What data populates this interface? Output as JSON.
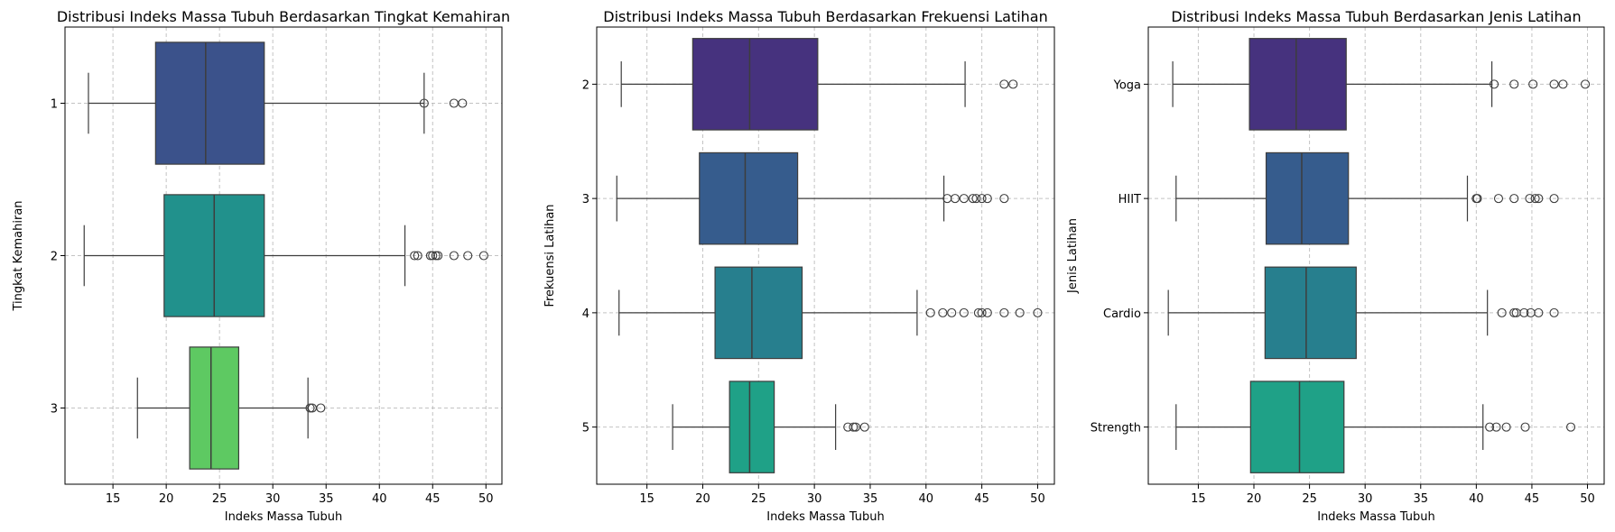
{
  "chart_data": [
    {
      "type": "box",
      "title": "Distribusi Indeks Massa Tubuh Berdasarkan Tingkat Kemahiran",
      "xlabel": "Indeks Massa Tubuh",
      "ylabel": "Tingkat Kemahiran",
      "xlim": [
        10.5,
        51.5
      ],
      "xticks": [
        15,
        20,
        25,
        30,
        35,
        40,
        45,
        50
      ],
      "categories": [
        "1",
        "2",
        "3"
      ],
      "grid": true,
      "palette": [
        "#3b528b",
        "#21918c",
        "#5ec962"
      ],
      "boxes": [
        {
          "whislo": 12.7,
          "q1": 19.0,
          "med": 23.7,
          "q3": 29.2,
          "whishi": 44.2,
          "fliers": [
            44.2,
            47.0,
            47.8
          ]
        },
        {
          "whislo": 12.3,
          "q1": 19.8,
          "med": 24.5,
          "q3": 29.2,
          "whishi": 42.4,
          "fliers": [
            43.3,
            43.6,
            44.8,
            45.0,
            45.3,
            45.5,
            47.0,
            48.3,
            49.8
          ]
        },
        {
          "whislo": 17.3,
          "q1": 22.2,
          "med": 24.2,
          "q3": 26.8,
          "whishi": 33.3,
          "fliers": [
            33.5,
            33.7,
            34.5
          ]
        }
      ]
    },
    {
      "type": "box",
      "title": "Distribusi Indeks Massa Tubuh Berdasarkan Frekuensi Latihan",
      "xlabel": "Indeks Massa Tubuh",
      "ylabel": "Frekuensi Latihan",
      "xlim": [
        10.5,
        51.5
      ],
      "xticks": [
        15,
        20,
        25,
        30,
        35,
        40,
        45,
        50
      ],
      "categories": [
        "2",
        "3",
        "4",
        "5"
      ],
      "grid": true,
      "palette": [
        "#46327e",
        "#365c8d",
        "#277f8e",
        "#1fa187"
      ],
      "boxes": [
        {
          "whislo": 12.7,
          "q1": 19.1,
          "med": 24.2,
          "q3": 30.3,
          "whishi": 43.5,
          "fliers": [
            47.0,
            47.8
          ]
        },
        {
          "whislo": 12.3,
          "q1": 19.7,
          "med": 23.8,
          "q3": 28.5,
          "whishi": 41.6,
          "fliers": [
            41.9,
            42.6,
            43.4,
            44.2,
            44.5,
            45.0,
            45.5,
            47.0
          ]
        },
        {
          "whislo": 12.5,
          "q1": 21.1,
          "med": 24.4,
          "q3": 28.9,
          "whishi": 39.2,
          "fliers": [
            40.4,
            41.5,
            42.3,
            43.4,
            44.7,
            45.0,
            45.5,
            47.0,
            48.4,
            50.0
          ]
        },
        {
          "whislo": 17.3,
          "q1": 22.4,
          "med": 24.2,
          "q3": 26.4,
          "whishi": 31.9,
          "fliers": [
            33.0,
            33.5,
            33.7,
            34.5
          ]
        }
      ]
    },
    {
      "type": "box",
      "title": "Distribusi Indeks Massa Tubuh Berdasarkan Jenis Latihan",
      "xlabel": "Indeks Massa Tubuh",
      "ylabel": "Jenis Latihan",
      "xlim": [
        10.5,
        51.5
      ],
      "xticks": [
        15,
        20,
        25,
        30,
        35,
        40,
        45,
        50
      ],
      "categories": [
        "Yoga",
        "HIIT",
        "Cardio",
        "Strength"
      ],
      "grid": true,
      "palette": [
        "#46327e",
        "#365c8d",
        "#277f8e",
        "#1fa187"
      ],
      "boxes": [
        {
          "whislo": 12.7,
          "q1": 19.6,
          "med": 23.8,
          "q3": 28.3,
          "whishi": 41.4,
          "fliers": [
            41.6,
            43.4,
            45.1,
            47.0,
            47.8,
            49.8
          ]
        },
        {
          "whislo": 13.0,
          "q1": 21.1,
          "med": 24.3,
          "q3": 28.5,
          "whishi": 39.2,
          "fliers": [
            40.0,
            40.1,
            42.0,
            43.4,
            44.8,
            45.3,
            45.6,
            47.0
          ]
        },
        {
          "whislo": 12.3,
          "q1": 21.0,
          "med": 24.7,
          "q3": 29.2,
          "whishi": 41.0,
          "fliers": [
            42.3,
            43.4,
            43.6,
            44.3,
            44.9,
            45.6,
            47.0
          ]
        },
        {
          "whislo": 13.0,
          "q1": 19.7,
          "med": 24.1,
          "q3": 28.1,
          "whishi": 40.6,
          "fliers": [
            41.2,
            41.8,
            42.7,
            44.4,
            48.5
          ]
        }
      ]
    }
  ]
}
